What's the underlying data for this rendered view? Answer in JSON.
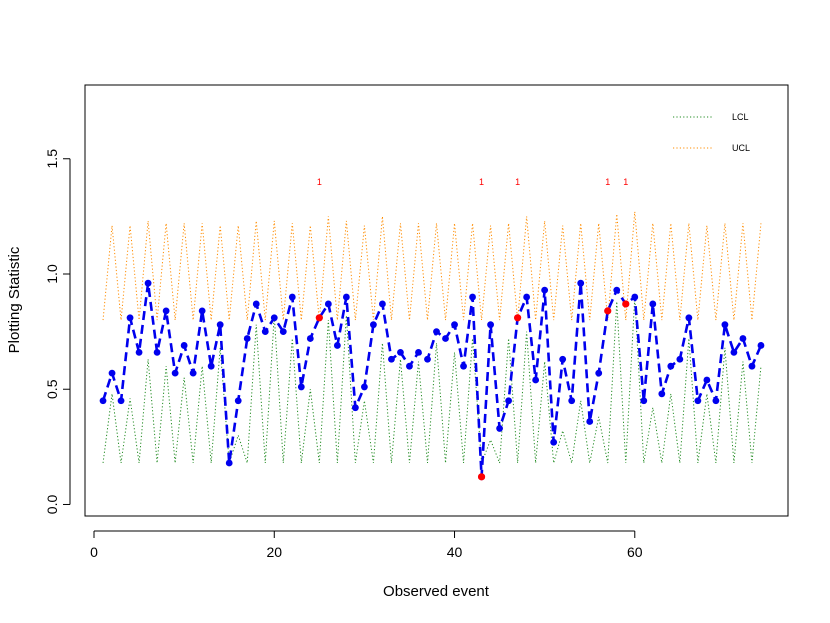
{
  "chart_data": {
    "type": "line",
    "title": "",
    "xlabel": "Observed event",
    "ylabel": "Plotting Statistic",
    "xlim": [
      -1,
      77
    ],
    "ylim": [
      -0.05,
      1.82
    ],
    "xticks": [
      0,
      20,
      40,
      60
    ],
    "xtick_labels": [
      "0",
      "20",
      "40",
      "60"
    ],
    "yticks": [
      0.0,
      0.5,
      1.0,
      1.5
    ],
    "ytick_labels": [
      "0.0",
      "0.5",
      "1.0",
      "1.5"
    ],
    "grid": false,
    "legend_position": "top-right",
    "colors": {
      "statistic": "#0000ee",
      "lcl": "#228b22",
      "ucl": "#ff8c00",
      "signal": "#ff0000",
      "axis": "#000000"
    },
    "series": [
      {
        "name": "Plotting Statistic",
        "style": "dashed-with-points",
        "x": [
          1,
          2,
          3,
          4,
          5,
          6,
          7,
          8,
          9,
          10,
          11,
          12,
          13,
          14,
          15,
          16,
          17,
          18,
          19,
          20,
          21,
          22,
          23,
          24,
          25,
          26,
          27,
          28,
          29,
          30,
          31,
          32,
          33,
          34,
          35,
          36,
          37,
          38,
          39,
          40,
          41,
          42,
          43,
          44,
          45,
          46,
          47,
          48,
          49,
          50,
          51,
          52,
          53,
          54,
          55,
          56,
          57,
          58,
          59,
          60,
          61,
          62,
          63,
          64,
          65,
          66,
          67,
          68,
          69,
          70,
          71,
          72,
          73,
          74
        ],
        "values": [
          0.45,
          0.57,
          0.45,
          0.81,
          0.66,
          0.96,
          0.66,
          0.84,
          0.57,
          0.69,
          0.57,
          0.84,
          0.6,
          0.78,
          0.18,
          0.45,
          0.72,
          0.87,
          0.75,
          0.81,
          0.75,
          0.9,
          0.51,
          0.72,
          0.81,
          0.87,
          0.69,
          0.9,
          0.42,
          0.51,
          0.78,
          0.87,
          0.63,
          0.66,
          0.6,
          0.66,
          0.63,
          0.75,
          0.72,
          0.78,
          0.6,
          0.9,
          0.12,
          0.78,
          0.33,
          0.45,
          0.81,
          0.9,
          0.54,
          0.93,
          0.27,
          0.63,
          0.45,
          0.96,
          0.36,
          0.57,
          0.84,
          0.93,
          0.87,
          0.9,
          0.45,
          0.87,
          0.48,
          0.6,
          0.63,
          0.81,
          0.45,
          0.54,
          0.45,
          0.78,
          0.66,
          0.72,
          0.6,
          0.69
        ]
      },
      {
        "name": "LCL",
        "style": "dotted",
        "x": [
          1,
          2,
          3,
          4,
          5,
          6,
          7,
          8,
          9,
          10,
          11,
          12,
          13,
          14,
          15,
          16,
          17,
          18,
          19,
          20,
          21,
          22,
          23,
          24,
          25,
          26,
          27,
          28,
          29,
          30,
          31,
          32,
          33,
          34,
          35,
          36,
          37,
          38,
          39,
          40,
          41,
          42,
          43,
          44,
          45,
          46,
          47,
          48,
          49,
          50,
          51,
          52,
          53,
          54,
          55,
          56,
          57,
          58,
          59,
          60,
          61,
          62,
          63,
          64,
          65,
          66,
          67,
          68,
          69,
          70,
          71,
          72,
          73,
          74
        ],
        "values": [
          0.18,
          0.48,
          0.18,
          0.46,
          0.18,
          0.63,
          0.18,
          0.6,
          0.18,
          0.55,
          0.18,
          0.6,
          0.18,
          0.68,
          0.18,
          0.3,
          0.18,
          0.78,
          0.18,
          0.82,
          0.18,
          0.72,
          0.18,
          0.5,
          0.18,
          0.8,
          0.18,
          0.82,
          0.18,
          0.45,
          0.18,
          0.7,
          0.18,
          0.63,
          0.18,
          0.62,
          0.18,
          0.7,
          0.18,
          0.66,
          0.18,
          0.72,
          0.18,
          0.28,
          0.18,
          0.72,
          0.18,
          0.75,
          0.18,
          0.62,
          0.18,
          0.32,
          0.18,
          0.45,
          0.18,
          0.38,
          0.18,
          0.88,
          0.18,
          0.9,
          0.18,
          0.42,
          0.18,
          0.48,
          0.18,
          0.72,
          0.18,
          0.48,
          0.18,
          0.68,
          0.18,
          0.62,
          0.18,
          0.6
        ]
      },
      {
        "name": "UCL",
        "style": "dotted",
        "x": [
          1,
          2,
          3,
          4,
          5,
          6,
          7,
          8,
          9,
          10,
          11,
          12,
          13,
          14,
          15,
          16,
          17,
          18,
          19,
          20,
          21,
          22,
          23,
          24,
          25,
          26,
          27,
          28,
          29,
          30,
          31,
          32,
          33,
          34,
          35,
          36,
          37,
          38,
          39,
          40,
          41,
          42,
          43,
          44,
          45,
          46,
          47,
          48,
          49,
          50,
          51,
          52,
          53,
          54,
          55,
          56,
          57,
          58,
          59,
          60,
          61,
          62,
          63,
          64,
          65,
          66,
          67,
          68,
          69,
          70,
          71,
          72,
          73,
          74
        ],
        "values": [
          0.8,
          1.21,
          0.8,
          1.21,
          0.8,
          1.23,
          0.8,
          1.22,
          0.8,
          1.22,
          0.8,
          1.22,
          0.8,
          1.21,
          0.8,
          1.21,
          0.8,
          1.23,
          0.8,
          1.23,
          0.8,
          1.22,
          0.8,
          1.21,
          0.8,
          1.25,
          0.8,
          1.23,
          0.8,
          1.21,
          0.8,
          1.25,
          0.8,
          1.22,
          0.8,
          1.22,
          0.8,
          1.22,
          0.8,
          1.22,
          0.8,
          1.22,
          0.8,
          1.21,
          0.8,
          1.22,
          0.8,
          1.25,
          0.8,
          1.23,
          0.8,
          1.21,
          0.8,
          1.22,
          0.8,
          1.22,
          0.8,
          1.26,
          0.8,
          1.27,
          0.8,
          1.22,
          0.8,
          1.22,
          0.8,
          1.22,
          0.8,
          1.21,
          0.8,
          1.22,
          0.8,
          1.22,
          0.8,
          1.22
        ]
      }
    ],
    "signal_points": [
      {
        "x": 25,
        "value": 0.81,
        "label": "1",
        "label_y": 1.4
      },
      {
        "x": 43,
        "value": 0.12,
        "label": "1",
        "label_y": 1.4
      },
      {
        "x": 47,
        "value": 0.81,
        "label": "1",
        "label_y": 1.4
      },
      {
        "x": 57,
        "value": 0.84,
        "label": "1",
        "label_y": 1.4
      },
      {
        "x": 59,
        "value": 0.87,
        "label": "1",
        "label_y": 1.4
      }
    ],
    "legend": [
      {
        "label": "LCL",
        "series": "LCL"
      },
      {
        "label": "UCL",
        "series": "UCL"
      }
    ]
  }
}
